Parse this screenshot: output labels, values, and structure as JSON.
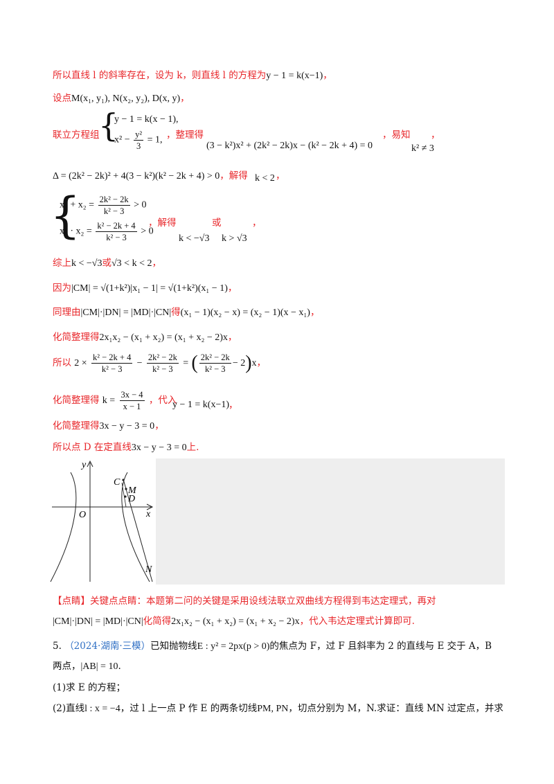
{
  "lines": {
    "l1_text": "所以直线 l 的斜率存在，设为 k，则直线 l 的方程为",
    "l1_math": "y − 1 = k(x−1)",
    "l1_end": "，",
    "l2_text": "设点",
    "l2_math": "M(x₁, y₁), N(x₂, y₂), D(x, y)",
    "l2_end": "，",
    "l3_text": "联立方程组",
    "l3_sys_a": "y − 1 = k(x − 1),",
    "l3_sys_b_pre": "x² −",
    "l3_sys_b_num": "y²",
    "l3_sys_b_den": "3",
    "l3_sys_b_post": "= 1,",
    "l3_mid": "，整理得",
    "l3_eq": "(3 − k²)x² + (2k² − 2k)x − (k² − 2k + 4) = 0",
    "l3_tail": "，易知",
    "l3_cond": "k² ≠ 3",
    "l3_comma": "，",
    "l4_math": "Δ = (2k² − 2k)² + 4(3 − k²)(k² − 2k + 4) > 0",
    "l4_text": "，解得",
    "l4_res": "k < 2",
    "l4_end": "，",
    "l5_a_pre": "x₁ + x₂ =",
    "l5_a_num": "2k² − 2k",
    "l5_a_den": "k² − 3",
    "l5_a_post": "> 0",
    "l5_b_pre": "x₁ · x₂ =",
    "l5_b_num": "k² − 2k + 4",
    "l5_b_den": "k² − 3",
    "l5_b_post": "> 0",
    "l5_text": "，解得",
    "l5_or": "或",
    "l5_comma": "，",
    "l5_r1": "k < −√3",
    "l5_r2": "k > √3",
    "l6_text": "综上",
    "l6_m1": "k < −√3",
    "l6_or": "或",
    "l6_m2": "√3 < k < 2",
    "l6_end": "，",
    "l7_text": "因为",
    "l7_math": "|CM| = √(1+k²)|x₁ − 1| = √(1+k²)(x₁ − 1)",
    "l7_end": "，",
    "l8_text": "同理由",
    "l8_math1": "|CM|·|DN| = |MD|·|CN|",
    "l8_text2": "得",
    "l8_math2": "(x₁ − 1)(x₂ − x) = (x₂ − 1)(x − x₁)",
    "l8_end": "，",
    "l9_text": "化简整理得",
    "l9_math": "2x₁x₂ − (x₁ + x₂) = (x₁ + x₂ − 2)x",
    "l9_end": "，",
    "l10_text": "所以",
    "l10_a": "2 ×",
    "l10_n1": "k² − 2k + 4",
    "l10_d1": "k² − 3",
    "l10_minus": "−",
    "l10_n2": "2k² − 2k",
    "l10_d2": "k² − 3",
    "l10_eq": "=",
    "l10_n3": "2k² − 2k",
    "l10_d3": "k² − 3",
    "l10_tail": "− 2",
    "l10_x": "x",
    "l10_end": "，",
    "l11_text": "化简整理得",
    "l11_pre": "k =",
    "l11_num": "3x − 4",
    "l11_den": "x − 1",
    "l11_mid": "，代入",
    "l11_math": "y − 1 = k(x−1)",
    "l11_end": "，",
    "l12_text": "化简整理得",
    "l12_math": "3x − y − 3 = 0",
    "l12_end": "，",
    "l13_text": "所以点 D 在定直线",
    "l13_math": "3x − y − 3 = 0",
    "l13_end": "上."
  },
  "figure": {
    "label_y": "y",
    "label_x": "x",
    "label_o": "O",
    "label_c": "C",
    "label_m": "M",
    "label_d": "D",
    "label_n": "N"
  },
  "comment": {
    "tag": "【点睛】",
    "text1": "关键点点睛：本题第二问的关键是采用设线法联立双曲线方程得到韦达定理式，再对",
    "math1": "|CM|·|DN| = |MD|·|CN|",
    "text2": "化简得",
    "math2": "2x₁x₂ − (x₁ + x₂) = (x₁ + x₂ − 2)x",
    "text3": "，代入韦达定理式计算即可."
  },
  "problem": {
    "num": "5.",
    "source": "（2024·湖南·三模）",
    "text1": "已知抛物线",
    "math1": "E : y² = 2px(p > 0)",
    "text2": "的焦点为 F，过 F 且斜率为 2 的直线与 E 交于 A，B",
    "text3": "两点，",
    "math3": "|AB| = 10",
    "text4": ".",
    "q1": "(1)求 E 的方程；",
    "q2_a": "(2)直线",
    "q2_math": "l : x = −4",
    "q2_b": "，过 l 上一点 P 作 E 的两条切线",
    "q2_math2": "PM, PN",
    "q2_c": "，切点分别为 M，N.求证：直线 MN 过定点，并求"
  }
}
